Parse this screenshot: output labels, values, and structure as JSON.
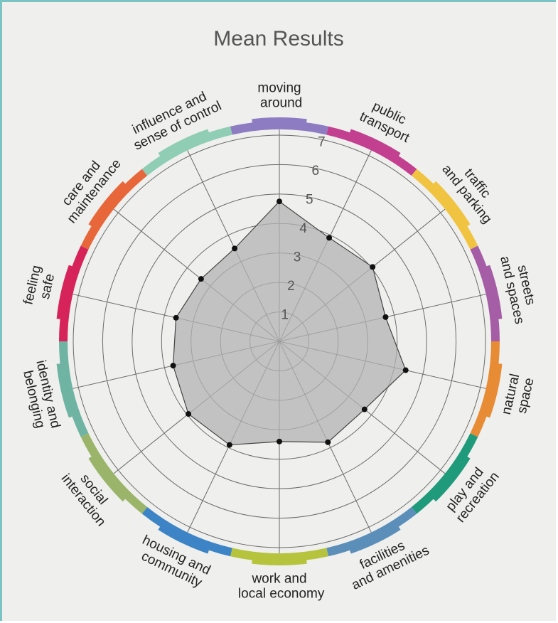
{
  "chart_data": {
    "type": "radar",
    "title": "Mean Results",
    "categories": [
      "moving around",
      "public transport",
      "traffic and parking",
      "streets and spaces",
      "natural space",
      "play and recreation",
      "facilities and amenities",
      "work and local economy",
      "housing and community",
      "social interaction",
      "identity and belonging",
      "feeling safe",
      "care and maintenance",
      "influence and sense of control"
    ],
    "values": [
      4.75,
      3.9,
      4.05,
      3.7,
      4.4,
      3.7,
      3.8,
      3.4,
      3.9,
      3.95,
      3.7,
      3.6,
      3.4,
      3.5
    ],
    "colors": [
      "#8e7cc3",
      "#c2408f",
      "#f0c341",
      "#a55ea6",
      "#e88b35",
      "#1f9a7a",
      "#5b8fb9",
      "#b5c43c",
      "#3d84c6",
      "#9ab56a",
      "#6fb3a3",
      "#d6245a",
      "#e8673a",
      "#8fcdb5"
    ],
    "fill": "#b3b3b3",
    "ylim": [
      0,
      7
    ],
    "yticks": [
      1,
      2,
      3,
      4,
      5,
      6,
      7
    ],
    "grid": true
  }
}
